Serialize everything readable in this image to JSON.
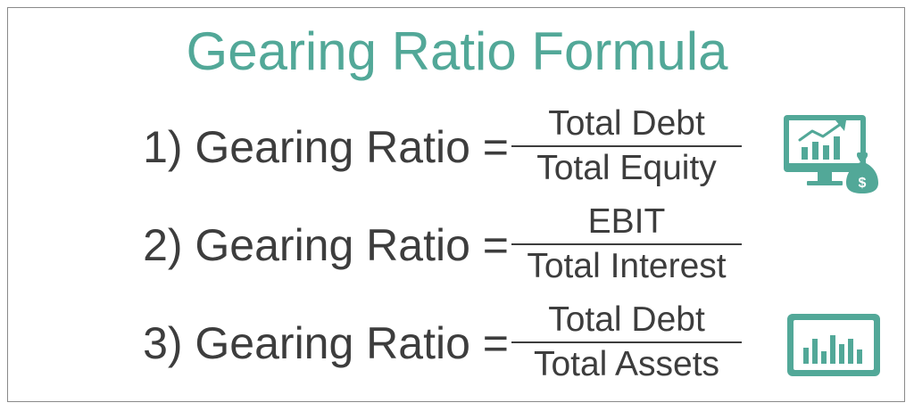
{
  "title": "Gearing Ratio Formula",
  "colors": {
    "title": "#52a898",
    "text": "#3d3d3d",
    "icon": "#52a898",
    "frame": "#8a8a8a"
  },
  "formulas": [
    {
      "lhs": "1) Gearing Ratio =",
      "numerator": "Total Debt",
      "denominator": "Total Equity"
    },
    {
      "lhs": "2) Gearing Ratio =",
      "numerator": "EBIT",
      "denominator": "Total Interest"
    },
    {
      "lhs": "3) Gearing Ratio =",
      "numerator": "Total Debt",
      "denominator": "Total Assets"
    }
  ],
  "icons": [
    {
      "name": "monitor-growth-chart-money-bag-icon",
      "glyph": "$"
    },
    {
      "name": "dashboard-bar-chart-icon"
    }
  ]
}
